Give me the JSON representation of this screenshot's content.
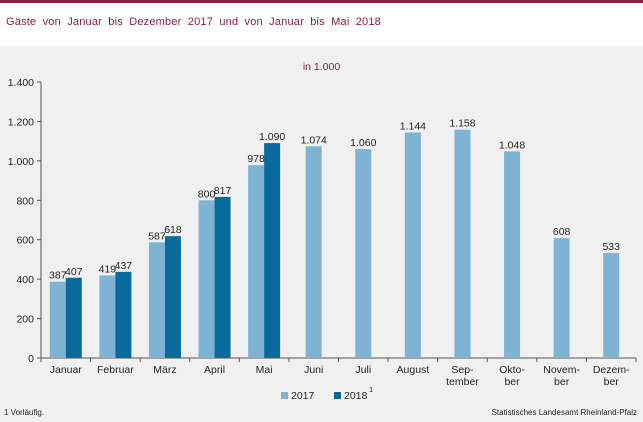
{
  "header": {
    "title": "Gäste von Januar bis Dezember 2017 und von Januar bis Mai 2018"
  },
  "chart_data": {
    "type": "bar",
    "subtitle": "in 1.000",
    "categories": [
      [
        "Januar"
      ],
      [
        "Februar"
      ],
      [
        "März"
      ],
      [
        "April"
      ],
      [
        "Mai"
      ],
      [
        "Juni"
      ],
      [
        "Juli"
      ],
      [
        "August"
      ],
      [
        "Sep-",
        "tember"
      ],
      [
        "Okto-",
        "ber"
      ],
      [
        "Novem-",
        "ber"
      ],
      [
        "Dezem-",
        "ber"
      ]
    ],
    "series": [
      {
        "name": "2017",
        "color": "#7fb3d3",
        "values": [
          387,
          419,
          587,
          800,
          978,
          1074,
          1060,
          1144,
          1158,
          1048,
          608,
          533
        ],
        "labels": [
          "387",
          "419",
          "587",
          "800",
          "978",
          "1.074",
          "1.060",
          "1.144",
          "1.158",
          "1.048",
          "608",
          "533"
        ]
      },
      {
        "name": "2018",
        "legend_sup": "1",
        "color": "#0a6a9c",
        "values": [
          407,
          437,
          618,
          817,
          1090,
          null,
          null,
          null,
          null,
          null,
          null,
          null
        ],
        "labels": [
          "407",
          "437",
          "618",
          "817",
          "1.090",
          "",
          "",
          "",
          "",
          "",
          "",
          ""
        ]
      }
    ],
    "ylim": [
      0,
      1400
    ],
    "yticks": [
      0,
      200,
      400,
      600,
      800,
      1000,
      1200,
      1400
    ],
    "ytick_labels": [
      "0",
      "200",
      "400",
      "600",
      "800",
      "1.000",
      "1.200",
      "1.400"
    ],
    "grid": false,
    "legend_position": "bottom-center"
  },
  "footnote": "1 Vorläufig.",
  "source": "Statistisches Landesamt Rheinland-Pfalz"
}
